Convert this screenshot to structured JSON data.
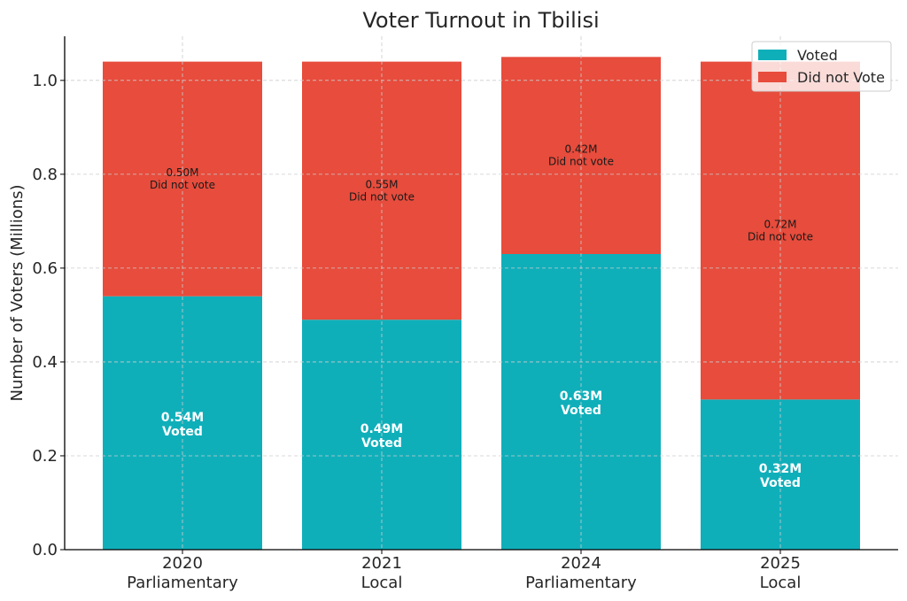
{
  "chart_data": {
    "type": "bar",
    "stacked": true,
    "title": "Voter Turnout in Tbilisi",
    "xlabel": "",
    "ylabel": "Number of Voters (Millions)",
    "ylim": [
      0,
      1.094
    ],
    "yticks": [
      0.0,
      0.2,
      0.4,
      0.6,
      0.8,
      1.0
    ],
    "ytick_labels": [
      "0.0",
      "0.2",
      "0.4",
      "0.6",
      "0.8",
      "1.0"
    ],
    "grid": true,
    "legend_position": "top-right",
    "categories": [
      {
        "year": "2020",
        "type": "Parliamentary"
      },
      {
        "year": "2021",
        "type": "Local"
      },
      {
        "year": "2024",
        "type": "Parliamentary"
      },
      {
        "year": "2025",
        "type": "Local"
      }
    ],
    "series": [
      {
        "name": "Voted",
        "color": "#0fafba",
        "values": [
          0.54,
          0.49,
          0.63,
          0.32
        ],
        "labels": [
          {
            "value": "0.54M",
            "text": "Voted"
          },
          {
            "value": "0.49M",
            "text": "Voted"
          },
          {
            "value": "0.63M",
            "text": "Voted"
          },
          {
            "value": "0.32M",
            "text": "Voted"
          }
        ]
      },
      {
        "name": "Did not Vote",
        "color": "#e74c3c",
        "values": [
          0.5,
          0.55,
          0.42,
          0.72
        ],
        "labels": [
          {
            "value": "0.50M",
            "text": "Did not vote"
          },
          {
            "value": "0.55M",
            "text": "Did not vote"
          },
          {
            "value": "0.42M",
            "text": "Did not vote"
          },
          {
            "value": "0.72M",
            "text": "Did not vote"
          }
        ]
      }
    ]
  }
}
